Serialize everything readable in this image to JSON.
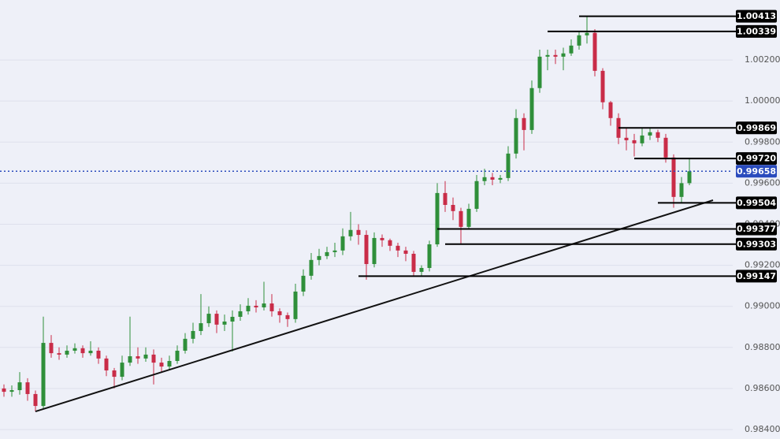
{
  "chart_data": {
    "type": "candlestick",
    "up_color": "#2f8f3a",
    "down_color": "#c92c48",
    "level_color": "#000000",
    "current_color": "#2a4bbd",
    "grid": true,
    "ylim": [
      0.98354,
      1.00492
    ],
    "yticks": [
      {
        "value": 0.984,
        "label": "0.98400"
      },
      {
        "value": 0.986,
        "label": "0.98600"
      },
      {
        "value": 0.988,
        "label": "0.98800"
      },
      {
        "value": 0.99,
        "label": "0.99000"
      },
      {
        "value": 0.992,
        "label": "0.99200"
      },
      {
        "value": 0.994,
        "label": "0.99400"
      },
      {
        "value": 0.996,
        "label": "0.99600"
      },
      {
        "value": 0.998,
        "label": "0.99800"
      },
      {
        "value": 1,
        "label": "1.00000"
      },
      {
        "value": 1.002,
        "label": "1.00200"
      }
    ],
    "candles": [
      [
        0.986,
        0.9862,
        0.9856,
        0.98584
      ],
      [
        0.98584,
        0.98615,
        0.9856,
        0.98592
      ],
      [
        0.98592,
        0.9868,
        0.9857,
        0.9863
      ],
      [
        0.9863,
        0.9865,
        0.9854,
        0.98573
      ],
      [
        0.98573,
        0.9859,
        0.98488,
        0.98515
      ],
      [
        0.98515,
        0.9895,
        0.985,
        0.98822
      ],
      [
        0.98822,
        0.9886,
        0.9875,
        0.98772
      ],
      [
        0.98772,
        0.988,
        0.9874,
        0.98765
      ],
      [
        0.98765,
        0.9881,
        0.9875,
        0.98784
      ],
      [
        0.98784,
        0.9882,
        0.9877,
        0.98796
      ],
      [
        0.98796,
        0.9881,
        0.9875,
        0.98772
      ],
      [
        0.98772,
        0.9883,
        0.9876,
        0.98784
      ],
      [
        0.98784,
        0.988,
        0.9872,
        0.98746
      ],
      [
        0.98746,
        0.9876,
        0.9866,
        0.98688
      ],
      [
        0.98688,
        0.987,
        0.986,
        0.98657
      ],
      [
        0.98657,
        0.9876,
        0.9864,
        0.98726
      ],
      [
        0.98726,
        0.9895,
        0.9871,
        0.98757
      ],
      [
        0.98757,
        0.988,
        0.9872,
        0.98746
      ],
      [
        0.98746,
        0.988,
        0.9873,
        0.98765
      ],
      [
        0.98765,
        0.9879,
        0.9862,
        0.98726
      ],
      [
        0.98726,
        0.9875,
        0.9868,
        0.98707
      ],
      [
        0.98707,
        0.9876,
        0.9869,
        0.98734
      ],
      [
        0.98734,
        0.9881,
        0.9872,
        0.98784
      ],
      [
        0.98784,
        0.9887,
        0.9877,
        0.98842
      ],
      [
        0.98842,
        0.9892,
        0.9882,
        0.9888
      ],
      [
        0.9888,
        0.9906,
        0.9886,
        0.98918
      ],
      [
        0.98918,
        0.99,
        0.989,
        0.98964
      ],
      [
        0.98964,
        0.9898,
        0.9887,
        0.98911
      ],
      [
        0.98911,
        0.9896,
        0.9888,
        0.98926
      ],
      [
        0.98926,
        0.9898,
        0.9878,
        0.98949
      ],
      [
        0.98949,
        0.9901,
        0.9893,
        0.98976
      ],
      [
        0.98976,
        0.9904,
        0.9896,
        0.99003
      ],
      [
        0.99003,
        0.9903,
        0.9897,
        0.98995
      ],
      [
        0.98995,
        0.9912,
        0.9898,
        0.99014
      ],
      [
        0.99014,
        0.9906,
        0.9895,
        0.98976
      ],
      [
        0.98976,
        0.9899,
        0.9892,
        0.98957
      ],
      [
        0.98957,
        0.9897,
        0.989,
        0.98938
      ],
      [
        0.98938,
        0.9911,
        0.9892,
        0.99072
      ],
      [
        0.99072,
        0.9918,
        0.9905,
        0.99149
      ],
      [
        0.99149,
        0.9926,
        0.9913,
        0.99226
      ],
      [
        0.99226,
        0.9928,
        0.992,
        0.99245
      ],
      [
        0.99245,
        0.9929,
        0.9923,
        0.99264
      ],
      [
        0.99264,
        0.9931,
        0.9924,
        0.99272
      ],
      [
        0.99272,
        0.9938,
        0.9925,
        0.99341
      ],
      [
        0.99341,
        0.9946,
        0.9932,
        0.99372
      ],
      [
        0.99372,
        0.994,
        0.993,
        0.99348
      ],
      [
        0.99348,
        0.9937,
        0.9913,
        0.99206
      ],
      [
        0.99206,
        0.9936,
        0.9919,
        0.99333
      ],
      [
        0.99333,
        0.9935,
        0.9929,
        0.99322
      ],
      [
        0.99322,
        0.9933,
        0.9927,
        0.99295
      ],
      [
        0.99295,
        0.9931,
        0.9924,
        0.99272
      ],
      [
        0.99272,
        0.9929,
        0.9922,
        0.99256
      ],
      [
        0.99256,
        0.9927,
        0.9915,
        0.99168
      ],
      [
        0.99168,
        0.992,
        0.9915,
        0.99187
      ],
      [
        0.99187,
        0.9932,
        0.9917,
        0.99302
      ],
      [
        0.99302,
        0.996,
        0.9929,
        0.99552
      ],
      [
        0.99552,
        0.9961,
        0.9946,
        0.99494
      ],
      [
        0.99494,
        0.9953,
        0.9942,
        0.99464
      ],
      [
        0.99464,
        0.9948,
        0.99303,
        0.99387
      ],
      [
        0.99387,
        0.995,
        0.99377,
        0.99475
      ],
      [
        0.99475,
        0.9964,
        0.9946,
        0.9961
      ],
      [
        0.9961,
        0.9967,
        0.9959,
        0.99629
      ],
      [
        0.99629,
        0.9965,
        0.9959,
        0.99617
      ],
      [
        0.99617,
        0.9964,
        0.996,
        0.99625
      ],
      [
        0.99625,
        0.9978,
        0.9961,
        0.99744
      ],
      [
        0.99744,
        0.9996,
        0.9972,
        0.99917
      ],
      [
        0.99917,
        0.9994,
        0.9976,
        0.99859
      ],
      [
        0.99859,
        1.001,
        0.9984,
        1.00063
      ],
      [
        1.00063,
        1.0025,
        1.0004,
        1.00216
      ],
      [
        1.00216,
        1.0025,
        1.0015,
        1.00224
      ],
      [
        1.00224,
        1.0025,
        1.0018,
        1.00216
      ],
      [
        1.00216,
        1.0026,
        1.0015,
        1.00232
      ],
      [
        1.00232,
        1.003,
        1.0022,
        1.0027
      ],
      [
        1.0027,
        1.00339,
        1.0025,
        1.0032
      ],
      [
        1.0032,
        1.00413,
        1.0028,
        1.00332
      ],
      [
        1.00332,
        1.0035,
        1.0012,
        1.00147
      ],
      [
        1.00147,
        1.0016,
        0.9996,
        0.99994
      ],
      [
        0.99994,
        1.0,
        0.9988,
        0.99917
      ],
      [
        0.99917,
        0.9994,
        0.9979,
        0.99821
      ],
      [
        0.99821,
        0.99869,
        0.9976,
        0.99809
      ],
      [
        0.99809,
        0.9984,
        0.9973,
        0.99794
      ],
      [
        0.99794,
        0.99869,
        0.9978,
        0.99832
      ],
      [
        0.99832,
        0.99869,
        0.9981,
        0.99848
      ],
      [
        0.99848,
        0.9986,
        0.998,
        0.99821
      ],
      [
        0.99821,
        0.9984,
        0.997,
        0.99725
      ],
      [
        0.99725,
        0.9974,
        0.9948,
        0.99533
      ],
      [
        0.99533,
        0.9963,
        0.99504,
        0.996
      ],
      [
        0.996,
        0.9972,
        0.9959,
        0.99658
      ]
    ],
    "levels": [
      {
        "value": 1.00413,
        "label": "1.00413",
        "from": 73
      },
      {
        "value": 1.00339,
        "label": "1.00339",
        "from": 69
      },
      {
        "value": 0.99869,
        "label": "0.99869",
        "from": 78
      },
      {
        "value": 0.9972,
        "label": "0.99720",
        "from": 80
      },
      {
        "value": 0.99504,
        "label": "0.99504",
        "from": 83
      },
      {
        "value": 0.99377,
        "label": "0.99377",
        "from": 55
      },
      {
        "value": 0.99303,
        "label": "0.99303",
        "from": 56
      },
      {
        "value": 0.99147,
        "label": "0.99147",
        "from": 45
      }
    ],
    "current_price": {
      "value": 0.99658,
      "label": "0.99658"
    },
    "trendline": {
      "from": [
        4,
        0.98488
      ],
      "to": [
        90,
        0.99517
      ]
    }
  }
}
